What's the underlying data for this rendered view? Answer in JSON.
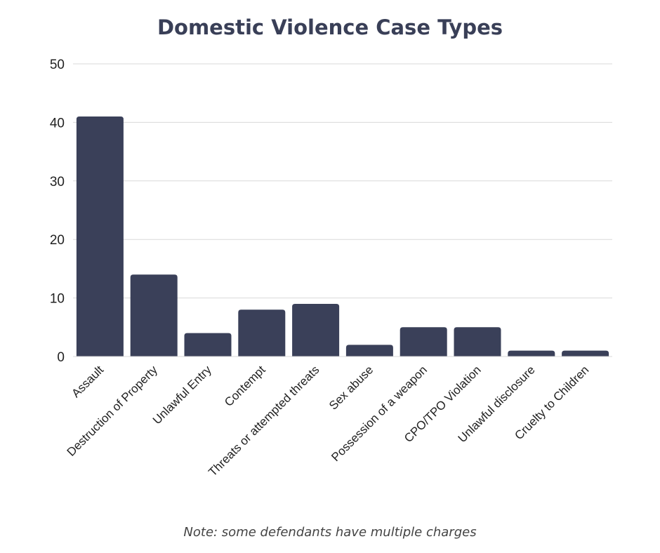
{
  "chart_data": {
    "type": "bar",
    "title": "Domestic Violence Case Types",
    "note": "Note: some defendants have multiple charges",
    "categories": [
      "Assault",
      "Destruction of Property",
      "Unlawful Entry",
      "Contempt",
      "Threats or attempted threats",
      "Sex abuse",
      "Possession of a weapon",
      "CPO/TPO Violation",
      "Unlawful disclosure",
      "Cruelty to Children"
    ],
    "values": [
      41,
      14,
      4,
      8,
      9,
      2,
      5,
      5,
      1,
      1
    ],
    "xlabel": "",
    "ylabel": "",
    "ylim": [
      0,
      50
    ],
    "yticks": [
      0,
      10,
      20,
      30,
      40,
      50
    ],
    "grid": true,
    "bar_color": "#3a4059"
  }
}
